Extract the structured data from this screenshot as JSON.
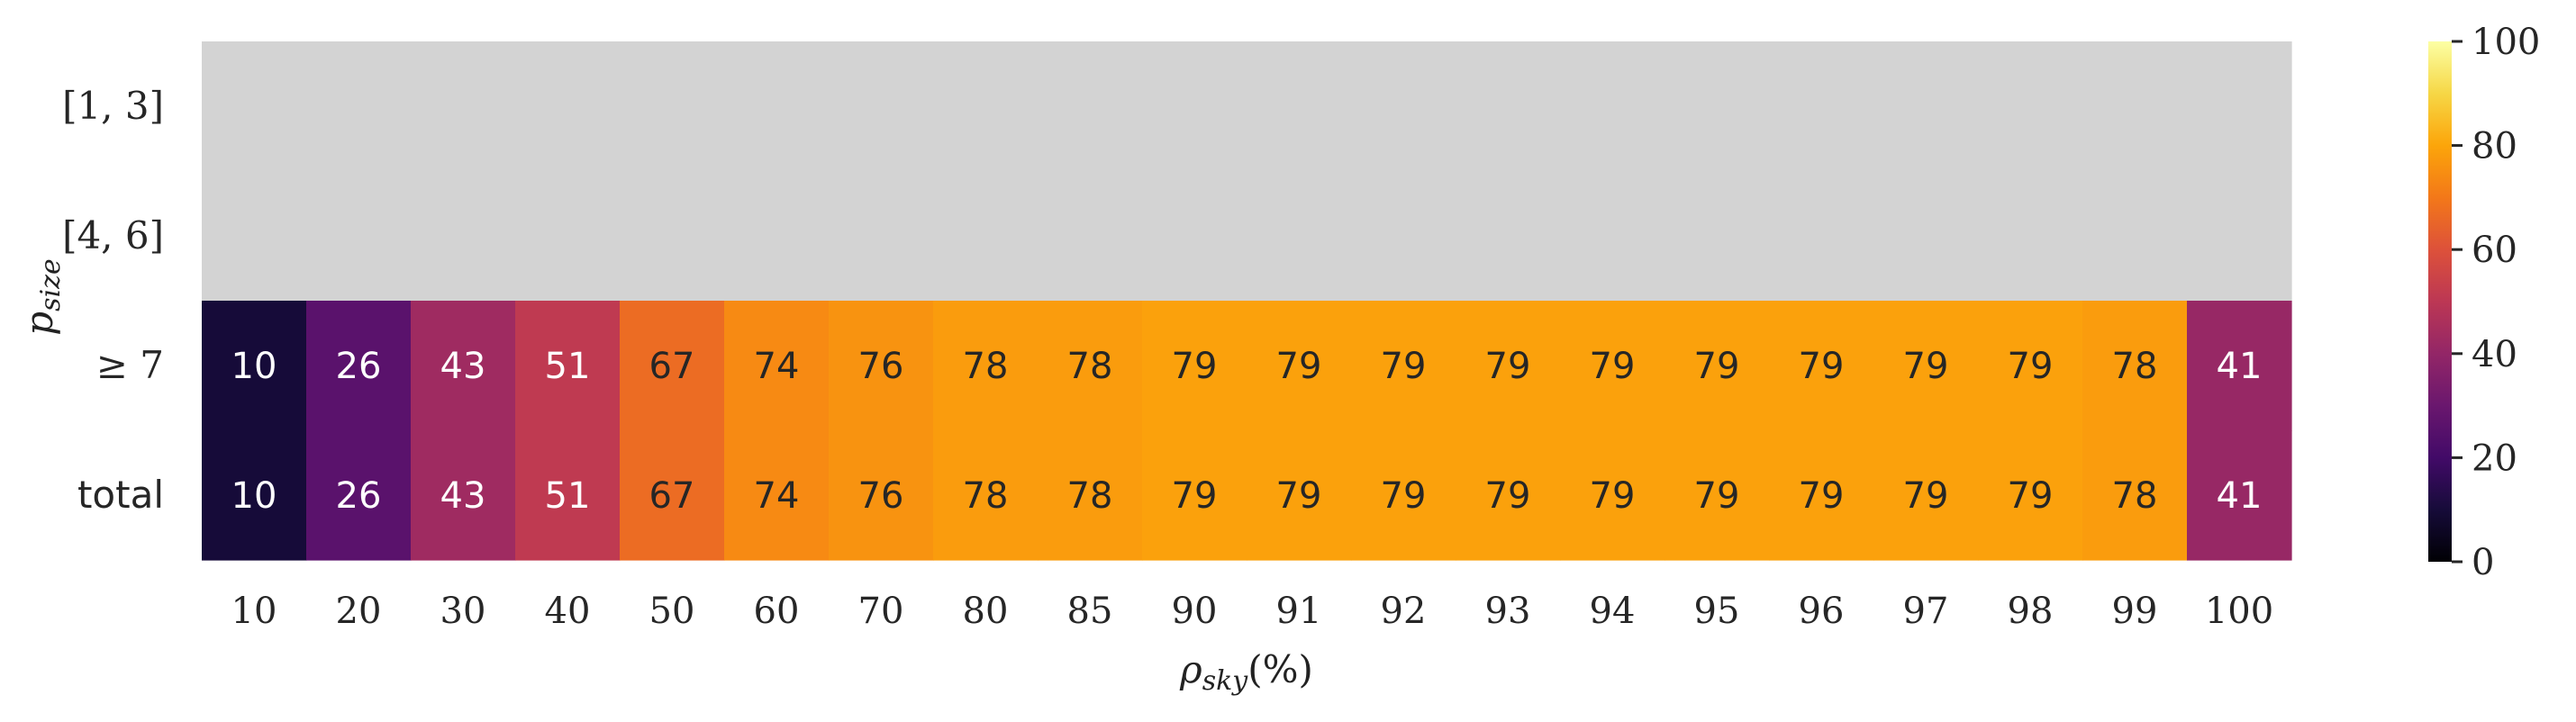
{
  "chart_data": {
    "type": "heatmap",
    "xlabel": "ρsky(%)",
    "xlabel_main": "ρ",
    "xlabel_sub": "sky",
    "xlabel_tail": "(%)",
    "ylabel": "psize",
    "ylabel_main": "p",
    "ylabel_sub": "size",
    "x_categories": [
      "10",
      "20",
      "30",
      "40",
      "50",
      "60",
      "70",
      "80",
      "85",
      "90",
      "91",
      "92",
      "93",
      "94",
      "95",
      "96",
      "97",
      "98",
      "99",
      "100"
    ],
    "y_categories": [
      "[1, 3]",
      "[4, 6]",
      "≥ 7",
      "total"
    ],
    "values": [
      [
        null,
        null,
        null,
        null,
        null,
        null,
        null,
        null,
        null,
        null,
        null,
        null,
        null,
        null,
        null,
        null,
        null,
        null,
        null,
        null
      ],
      [
        null,
        null,
        null,
        null,
        null,
        null,
        null,
        null,
        null,
        null,
        null,
        null,
        null,
        null,
        null,
        null,
        null,
        null,
        null,
        null
      ],
      [
        10,
        26,
        43,
        51,
        67,
        74,
        76,
        78,
        78,
        79,
        79,
        79,
        79,
        79,
        79,
        79,
        79,
        79,
        78,
        41
      ],
      [
        10,
        26,
        43,
        51,
        67,
        74,
        76,
        78,
        78,
        79,
        79,
        79,
        79,
        79,
        79,
        79,
        79,
        79,
        78,
        41
      ]
    ],
    "colormap": "inferno",
    "missing_color": "#d3d3d3",
    "colorbar": {
      "range": [
        0,
        100
      ],
      "ticks": [
        "0",
        "20",
        "40",
        "60",
        "80",
        "100"
      ]
    }
  }
}
